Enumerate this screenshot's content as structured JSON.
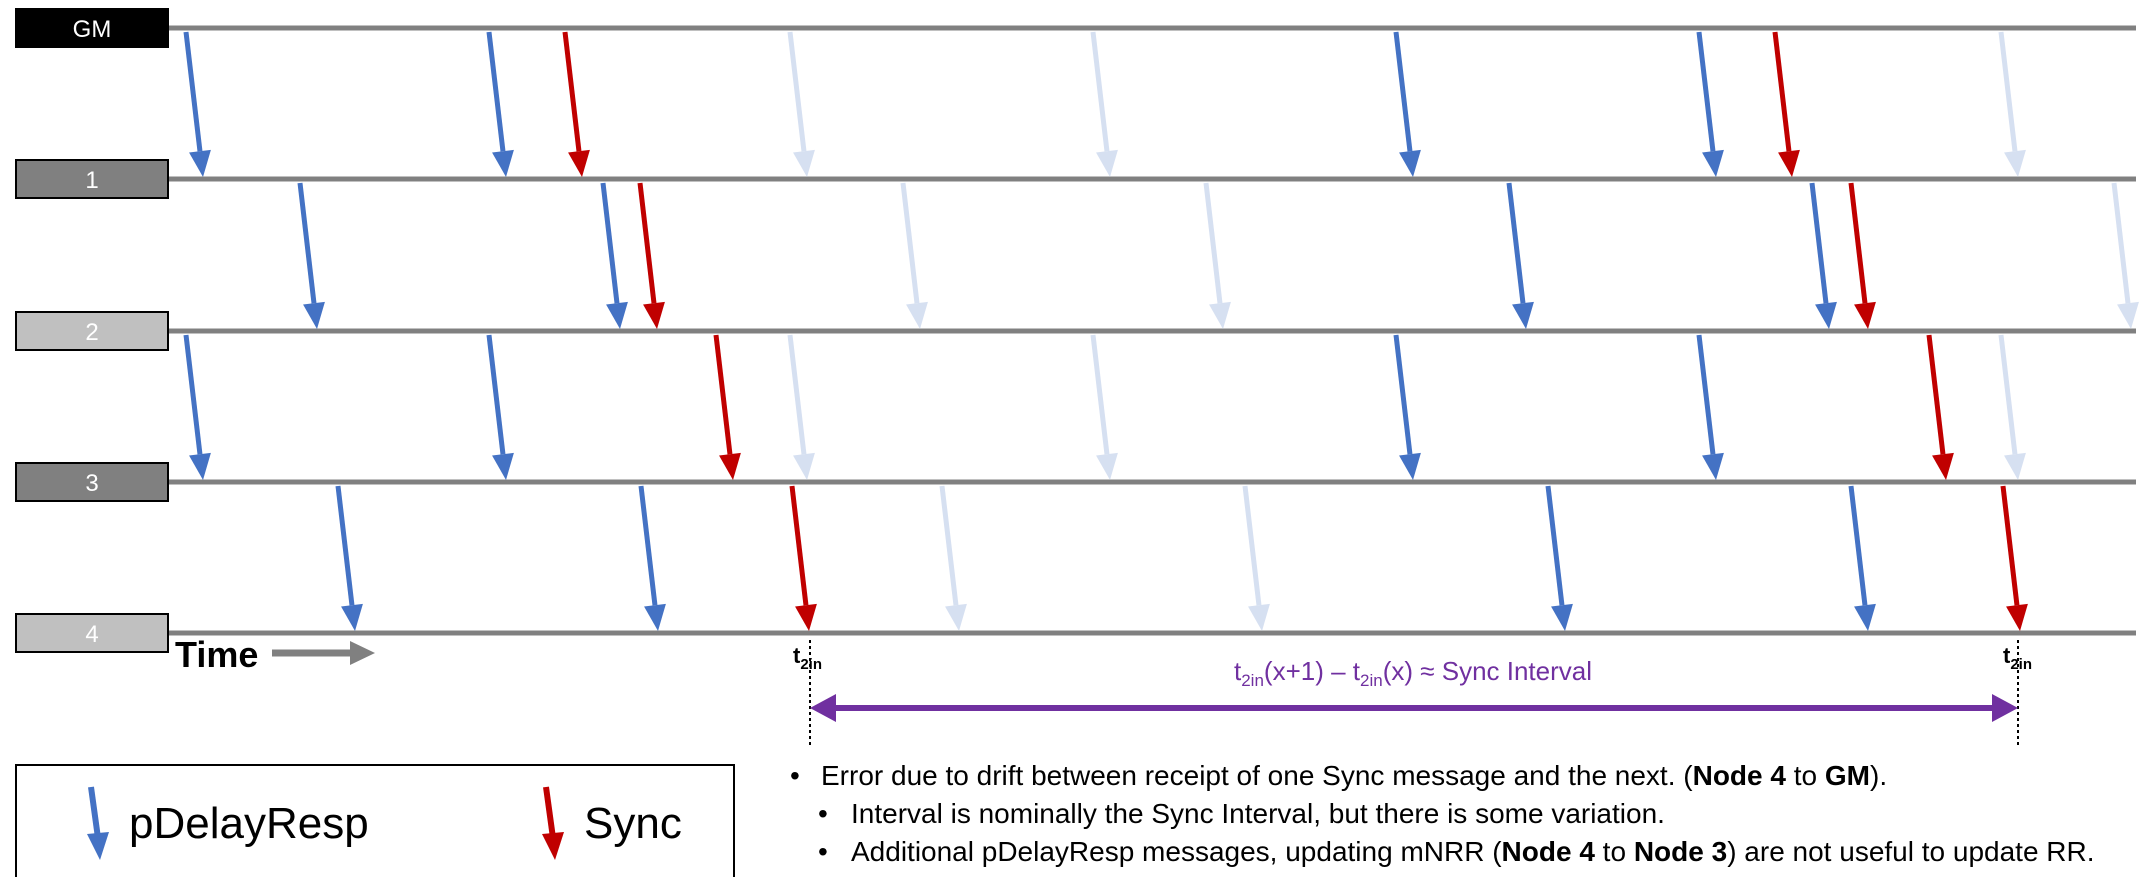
{
  "colors": {
    "pdelay": "#4472c4",
    "pdelay_faded": "#d6e0f1",
    "sync": "#c00000",
    "line": "#808080",
    "interval": "#7030a0"
  },
  "nodes": [
    {
      "label": "GM",
      "fill": "#000000"
    },
    {
      "label": "1",
      "fill": "#808080"
    },
    {
      "label": "2",
      "fill": "#c0c0c0"
    },
    {
      "label": "3",
      "fill": "#808080"
    },
    {
      "label": "4",
      "fill": "#c0c0c0"
    }
  ],
  "time_label": "Time",
  "t2in": {
    "t": "t",
    "sub": "2in"
  },
  "interval_label": {
    "p1": "t",
    "s1": "2in",
    "p2": "(x+1) – t",
    "s2": "2in",
    "p3": "(x) ≈ Sync Interval"
  },
  "legend": {
    "pdelay": "pDelayResp",
    "sync": "Sync"
  },
  "notes": [
    {
      "level": 0,
      "parts": [
        {
          "text": "Error due to drift between receipt of one Sync message and the next. (",
          "bold": false
        },
        {
          "text": "Node 4",
          "bold": true
        },
        {
          "text": " to ",
          "bold": false
        },
        {
          "text": "GM",
          "bold": true
        },
        {
          "text": ").",
          "bold": false
        }
      ]
    },
    {
      "level": 1,
      "parts": [
        {
          "text": "Interval is nominally the Sync Interval, but there is some variation.",
          "bold": false
        }
      ]
    },
    {
      "level": 1,
      "parts": [
        {
          "text": "Additional pDelayResp messages, updating mNRR (",
          "bold": false
        },
        {
          "text": "Node 4",
          "bold": true
        },
        {
          "text": " to ",
          "bold": false
        },
        {
          "text": "Node 3",
          "bold": true
        },
        {
          "text": ") are not useful to update RR.",
          "bold": false
        }
      ]
    }
  ],
  "messages": [
    {
      "gap": 0,
      "type": "pdelay"
    },
    {
      "gap": 0,
      "type": "pdelay"
    },
    {
      "gap": 0,
      "type": "sync"
    },
    {
      "gap": 0,
      "type": "pdelay_faded"
    },
    {
      "gap": 0,
      "type": "pdelay_faded"
    },
    {
      "gap": 0,
      "type": "pdelay"
    },
    {
      "gap": 0,
      "type": "pdelay"
    },
    {
      "gap": 0,
      "type": "sync"
    },
    {
      "gap": 0,
      "type": "pdelay_faded"
    },
    {
      "gap": 1,
      "type": "pdelay"
    },
    {
      "gap": 1,
      "type": "pdelay"
    },
    {
      "gap": 1,
      "type": "sync"
    },
    {
      "gap": 1,
      "type": "pdelay_faded"
    },
    {
      "gap": 1,
      "type": "pdelay_faded"
    },
    {
      "gap": 1,
      "type": "pdelay"
    },
    {
      "gap": 1,
      "type": "pdelay"
    },
    {
      "gap": 1,
      "type": "sync"
    },
    {
      "gap": 1,
      "type": "pdelay_faded"
    },
    {
      "gap": 2,
      "type": "pdelay"
    },
    {
      "gap": 2,
      "type": "pdelay"
    },
    {
      "gap": 2,
      "type": "sync"
    },
    {
      "gap": 2,
      "type": "pdelay_faded"
    },
    {
      "gap": 2,
      "type": "pdelay_faded"
    },
    {
      "gap": 2,
      "type": "pdelay"
    },
    {
      "gap": 2,
      "type": "pdelay"
    },
    {
      "gap": 2,
      "type": "sync"
    },
    {
      "gap": 2,
      "type": "pdelay_faded"
    },
    {
      "gap": 3,
      "type": "pdelay"
    },
    {
      "gap": 3,
      "type": "pdelay"
    },
    {
      "gap": 3,
      "type": "sync"
    },
    {
      "gap": 3,
      "type": "pdelay_faded"
    },
    {
      "gap": 3,
      "type": "pdelay_faded"
    },
    {
      "gap": 3,
      "type": "pdelay"
    },
    {
      "gap": 3,
      "type": "pdelay"
    },
    {
      "gap": 3,
      "type": "sync"
    }
  ]
}
